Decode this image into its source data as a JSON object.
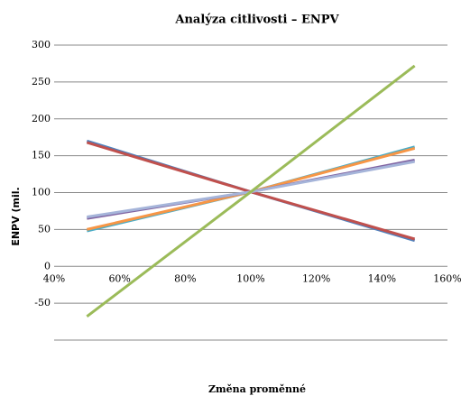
{
  "chart_data": {
    "type": "line",
    "title": "Analýza citlivosti – ENPV",
    "x_label": "Změna proměnné",
    "y_label": "ENPV (mil.",
    "x": [
      50,
      100,
      150
    ],
    "xlim": [
      40,
      160
    ],
    "xticks": [
      {
        "value": 40,
        "label": "40%"
      },
      {
        "value": 60,
        "label": "60%"
      },
      {
        "value": 80,
        "label": "80%"
      },
      {
        "value": 100,
        "label": "100%"
      },
      {
        "value": 120,
        "label": "120%"
      },
      {
        "value": 140,
        "label": "140%"
      },
      {
        "value": 160,
        "label": "160%"
      }
    ],
    "ylim": [
      -100,
      300
    ],
    "yticks": [
      -50,
      0,
      50,
      100,
      150,
      200,
      250,
      300
    ],
    "grid": true,
    "series": [
      {
        "color": "#4f81bd",
        "values": [
          170,
          101,
          35
        ]
      },
      {
        "color": "#c0504d",
        "values": [
          168,
          101,
          37
        ]
      },
      {
        "color": "#4bacc6",
        "values": [
          48,
          101,
          162
        ]
      },
      {
        "color": "#f79646",
        "values": [
          50,
          101,
          160
        ]
      },
      {
        "color": "#8064a2",
        "values": [
          65,
          101,
          144
        ]
      },
      {
        "color": "#a5b4d9",
        "values": [
          67,
          101,
          142
        ]
      },
      {
        "color": "#9bbb59",
        "values": [
          -68,
          101,
          272
        ]
      }
    ]
  }
}
